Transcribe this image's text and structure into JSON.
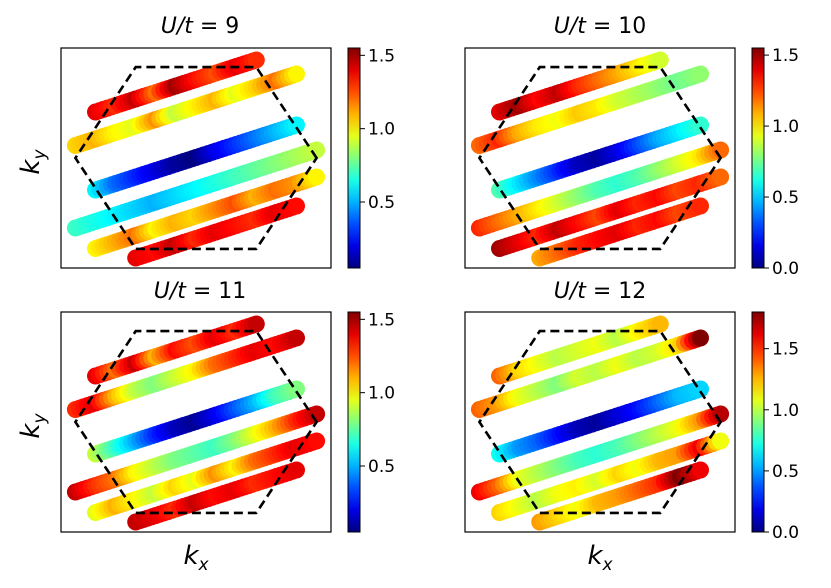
{
  "figure": {
    "xlabel": "k_x",
    "ylabel": "k_y"
  },
  "chart_data": [
    {
      "type": "scatter",
      "title": "U/t = 9",
      "title_parts": {
        "var": "U",
        "slash": "/",
        "den": "t",
        "eq": " = ",
        "val": "9"
      },
      "xlabel": "",
      "ylabel": "k_y",
      "colorbar": {
        "min": 0.05,
        "max": 1.55,
        "ticks": [
          0.5,
          1.0,
          1.5
        ],
        "tick_labels": [
          "0.5",
          "1.0",
          "1.5"
        ],
        "colormap": "jet"
      },
      "brillouin_zone": "hexagon, black dashed",
      "grid": false,
      "series": [
        {
          "x": [
            -1.75,
            -1.4,
            -1.05,
            -0.7,
            -0.35,
            0.0,
            0.35,
            0.7,
            1.05
          ],
          "y": [
            0.92,
            1.05,
            1.18,
            1.31,
            1.44,
            1.57,
            1.7,
            1.83,
            1.96
          ],
          "c": [
            1.4,
            1.3,
            1.45,
            1.2,
            1.5,
            1.35,
            1.25,
            1.4,
            1.3
          ]
        },
        {
          "x": [
            -2.1,
            -1.75,
            -1.4,
            -1.05,
            -0.7,
            -0.35,
            0.0,
            0.35,
            0.7,
            1.05,
            1.4,
            1.75
          ],
          "y": [
            0.25,
            0.38,
            0.51,
            0.64,
            0.77,
            0.9,
            1.03,
            1.16,
            1.29,
            1.42,
            1.55,
            1.68
          ],
          "c": [
            1.05,
            1.1,
            1.0,
            0.95,
            1.15,
            0.9,
            1.0,
            1.1,
            0.95,
            1.05,
            1.2,
            1.0
          ]
        },
        {
          "x": [
            -1.75,
            -1.4,
            -1.05,
            -0.7,
            -0.35,
            0.0,
            0.35,
            0.7,
            1.05,
            1.4,
            1.75
          ],
          "y": [
            -0.64,
            -0.51,
            -0.38,
            -0.25,
            -0.12,
            0.01,
            0.14,
            0.27,
            0.4,
            0.53,
            0.66
          ],
          "c": [
            0.6,
            0.4,
            0.3,
            0.2,
            0.1,
            0.05,
            0.2,
            0.3,
            0.4,
            0.5,
            0.6
          ]
        },
        {
          "x": [
            -2.1,
            -1.75,
            -1.4,
            -1.05,
            -0.7,
            -0.35,
            0.0,
            0.35,
            0.7,
            1.05,
            1.4,
            1.75,
            2.1
          ],
          "y": [
            -1.4,
            -1.27,
            -1.14,
            -1.01,
            -0.88,
            -0.75,
            -0.62,
            -0.49,
            -0.36,
            -0.23,
            -0.1,
            0.03,
            0.16
          ],
          "c": [
            0.7,
            0.65,
            0.6,
            0.55,
            0.5,
            0.55,
            0.6,
            0.65,
            0.7,
            0.75,
            0.8,
            0.85,
            0.9
          ]
        },
        {
          "x": [
            -1.75,
            -1.4,
            -1.05,
            -0.7,
            -0.35,
            0.0,
            0.35,
            0.7,
            1.05,
            1.4,
            1.75,
            2.1
          ],
          "y": [
            -1.81,
            -1.68,
            -1.55,
            -1.42,
            -1.29,
            -1.16,
            -1.03,
            -0.9,
            -0.77,
            -0.64,
            -0.51,
            -0.38
          ],
          "c": [
            1.0,
            1.1,
            1.2,
            1.0,
            1.1,
            1.05,
            1.15,
            1.25,
            1.1,
            1.2,
            1.15,
            1.0
          ]
        },
        {
          "x": [
            -1.05,
            -0.7,
            -0.35,
            0.0,
            0.35,
            0.7,
            1.05,
            1.4,
            1.75
          ],
          "y": [
            -2.0,
            -1.87,
            -1.74,
            -1.61,
            -1.48,
            -1.35,
            -1.22,
            -1.09,
            -0.96
          ],
          "c": [
            1.4,
            1.35,
            1.45,
            1.3,
            1.4,
            1.35,
            1.3,
            1.4,
            1.35
          ]
        }
      ]
    },
    {
      "type": "scatter",
      "title": "U/t = 10",
      "title_parts": {
        "var": "U",
        "slash": "/",
        "den": "t",
        "eq": " = ",
        "val": "10"
      },
      "xlabel": "",
      "ylabel": "",
      "colorbar": {
        "min": 0.0,
        "max": 1.55,
        "ticks": [
          0.0,
          0.5,
          1.0,
          1.5
        ],
        "tick_labels": [
          "0.0",
          "0.5",
          "1.0",
          "1.5"
        ],
        "colormap": "jet"
      },
      "brillouin_zone": "hexagon, black dashed",
      "grid": false,
      "series": [
        {
          "x": [
            -1.75,
            -1.4,
            -1.05,
            -0.7,
            -0.35,
            0.0,
            0.35,
            0.7,
            1.05
          ],
          "y": [
            0.92,
            1.05,
            1.18,
            1.31,
            1.44,
            1.57,
            1.7,
            1.83,
            1.96
          ],
          "c": [
            1.4,
            1.5,
            1.35,
            1.45,
            1.3,
            1.2,
            1.1,
            1.0,
            0.9
          ]
        },
        {
          "x": [
            -2.1,
            -1.75,
            -1.4,
            -1.05,
            -0.7,
            -0.35,
            0.0,
            0.35,
            0.7,
            1.05,
            1.4,
            1.75
          ],
          "y": [
            0.25,
            0.38,
            0.51,
            0.64,
            0.77,
            0.9,
            1.03,
            1.16,
            1.29,
            1.42,
            1.55,
            1.68
          ],
          "c": [
            1.2,
            1.3,
            1.1,
            1.0,
            0.95,
            1.05,
            1.0,
            0.9,
            0.85,
            0.8,
            0.75,
            0.8
          ]
        },
        {
          "x": [
            -1.75,
            -1.4,
            -1.05,
            -0.7,
            -0.35,
            0.0,
            0.35,
            0.7,
            1.05,
            1.4,
            1.75
          ],
          "y": [
            -0.64,
            -0.51,
            -0.38,
            -0.25,
            -0.12,
            0.01,
            0.14,
            0.27,
            0.4,
            0.53,
            0.66
          ],
          "c": [
            0.7,
            0.55,
            0.4,
            0.25,
            0.1,
            0.05,
            0.15,
            0.3,
            0.45,
            0.55,
            0.65
          ]
        },
        {
          "x": [
            -2.1,
            -1.75,
            -1.4,
            -1.05,
            -0.7,
            -0.35,
            0.0,
            0.35,
            0.7,
            1.05,
            1.4,
            1.75,
            2.1
          ],
          "y": [
            -1.4,
            -1.27,
            -1.14,
            -1.01,
            -0.88,
            -0.75,
            -0.62,
            -0.49,
            -0.36,
            -0.23,
            -0.1,
            0.03,
            0.16
          ],
          "c": [
            1.3,
            1.2,
            1.1,
            1.0,
            0.9,
            0.8,
            0.7,
            0.65,
            0.7,
            0.8,
            0.9,
            1.0,
            1.2
          ]
        },
        {
          "x": [
            -1.75,
            -1.4,
            -1.05,
            -0.7,
            -0.35,
            0.0,
            0.35,
            0.7,
            1.05,
            1.4,
            1.75,
            2.1
          ],
          "y": [
            -1.81,
            -1.68,
            -1.55,
            -1.42,
            -1.29,
            -1.16,
            -1.03,
            -0.9,
            -0.77,
            -0.64,
            -0.51,
            -0.38
          ],
          "c": [
            1.5,
            1.4,
            1.3,
            1.45,
            1.35,
            1.25,
            1.4,
            1.3,
            1.35,
            1.25,
            1.3,
            1.2
          ]
        },
        {
          "x": [
            -1.05,
            -0.7,
            -0.35,
            0.0,
            0.35,
            0.7,
            1.05,
            1.4,
            1.75
          ],
          "y": [
            -2.0,
            -1.87,
            -1.74,
            -1.61,
            -1.48,
            -1.35,
            -1.22,
            -1.09,
            -0.96
          ],
          "c": [
            1.1,
            1.2,
            1.3,
            1.35,
            1.4,
            1.3,
            1.35,
            1.25,
            1.3
          ]
        }
      ]
    },
    {
      "type": "scatter",
      "title": "U/t = 11",
      "title_parts": {
        "var": "U",
        "slash": "/",
        "den": "t",
        "eq": " = ",
        "val": "11"
      },
      "xlabel": "k_x",
      "ylabel": "k_y",
      "colorbar": {
        "min": 0.05,
        "max": 1.55,
        "ticks": [
          0.5,
          1.0,
          1.5
        ],
        "tick_labels": [
          "0.5",
          "1.0",
          "1.5"
        ],
        "colormap": "jet"
      },
      "brillouin_zone": "hexagon, black dashed",
      "grid": false,
      "series": [
        {
          "x": [
            -1.75,
            -1.4,
            -1.05,
            -0.7,
            -0.35,
            0.0,
            0.35,
            0.7,
            1.05
          ],
          "y": [
            0.92,
            1.05,
            1.18,
            1.31,
            1.44,
            1.57,
            1.7,
            1.83,
            1.96
          ],
          "c": [
            1.4,
            1.2,
            1.45,
            1.1,
            1.35,
            1.25,
            1.4,
            1.3,
            1.45
          ]
        },
        {
          "x": [
            -2.1,
            -1.75,
            -1.4,
            -1.05,
            -0.7,
            -0.35,
            0.0,
            0.35,
            0.7,
            1.05,
            1.4,
            1.75
          ],
          "y": [
            0.25,
            0.38,
            0.51,
            0.64,
            0.77,
            0.9,
            1.03,
            1.16,
            1.29,
            1.42,
            1.55,
            1.68
          ],
          "c": [
            1.3,
            1.4,
            1.1,
            0.9,
            0.8,
            0.9,
            1.0,
            1.2,
            1.3,
            1.4,
            1.35,
            1.45
          ]
        },
        {
          "x": [
            -1.75,
            -1.4,
            -1.05,
            -0.7,
            -0.35,
            0.0,
            0.35,
            0.7,
            1.05,
            1.4,
            1.75
          ],
          "y": [
            -0.64,
            -0.51,
            -0.38,
            -0.25,
            -0.12,
            0.01,
            0.14,
            0.27,
            0.4,
            0.53,
            0.66
          ],
          "c": [
            0.9,
            0.7,
            0.5,
            0.3,
            0.15,
            0.08,
            0.2,
            0.35,
            0.5,
            0.7,
            0.8
          ]
        },
        {
          "x": [
            -2.1,
            -1.75,
            -1.4,
            -1.05,
            -0.7,
            -0.35,
            0.0,
            0.35,
            0.7,
            1.05,
            1.4,
            1.75,
            2.1
          ],
          "y": [
            -1.4,
            -1.27,
            -1.14,
            -1.01,
            -0.88,
            -0.75,
            -0.62,
            -0.49,
            -0.36,
            -0.23,
            -0.1,
            0.03,
            0.16
          ],
          "c": [
            1.45,
            1.3,
            1.2,
            1.0,
            0.9,
            0.8,
            0.75,
            0.7,
            0.8,
            0.95,
            1.1,
            1.3,
            1.45
          ]
        },
        {
          "x": [
            -1.75,
            -1.4,
            -1.05,
            -0.7,
            -0.35,
            0.0,
            0.35,
            0.7,
            1.05,
            1.4,
            1.75,
            2.1
          ],
          "y": [
            -1.81,
            -1.68,
            -1.55,
            -1.42,
            -1.29,
            -1.16,
            -1.03,
            -0.9,
            -0.77,
            -0.64,
            -0.51,
            -0.38
          ],
          "c": [
            0.95,
            1.1,
            1.0,
            0.9,
            1.05,
            0.95,
            1.15,
            1.0,
            1.2,
            1.3,
            1.4,
            1.35
          ]
        },
        {
          "x": [
            -1.05,
            -0.7,
            -0.35,
            0.0,
            0.35,
            0.7,
            1.05,
            1.4,
            1.75
          ],
          "y": [
            -2.0,
            -1.87,
            -1.74,
            -1.61,
            -1.48,
            -1.35,
            -1.22,
            -1.09,
            -0.96
          ],
          "c": [
            1.45,
            1.4,
            1.3,
            1.45,
            1.35,
            1.4,
            1.3,
            1.35,
            1.4
          ]
        }
      ]
    },
    {
      "type": "scatter",
      "title": "U/t = 12",
      "title_parts": {
        "var": "U",
        "slash": "/",
        "den": "t",
        "eq": " = ",
        "val": "12"
      },
      "xlabel": "k_x",
      "ylabel": "",
      "colorbar": {
        "min": 0.0,
        "max": 1.8,
        "ticks": [
          0.0,
          0.5,
          1.0,
          1.5
        ],
        "tick_labels": [
          "0.0",
          "0.5",
          "1.0",
          "1.5"
        ],
        "colormap": "jet"
      },
      "brillouin_zone": "hexagon, black dashed",
      "grid": false,
      "series": [
        {
          "x": [
            -1.75,
            -1.4,
            -1.05,
            -0.7,
            -0.35,
            0.0,
            0.35,
            0.7,
            1.05
          ],
          "y": [
            0.92,
            1.05,
            1.18,
            1.31,
            1.44,
            1.57,
            1.7,
            1.83,
            1.96
          ],
          "c": [
            1.4,
            1.2,
            1.1,
            1.0,
            1.05,
            1.1,
            1.0,
            1.15,
            1.25
          ]
        },
        {
          "x": [
            -2.1,
            -1.75,
            -1.4,
            -1.05,
            -0.7,
            -0.35,
            0.0,
            0.35,
            0.7,
            1.05,
            1.4,
            1.75
          ],
          "y": [
            0.25,
            0.38,
            0.51,
            0.64,
            0.77,
            0.9,
            1.03,
            1.16,
            1.29,
            1.42,
            1.55,
            1.68
          ],
          "c": [
            1.4,
            1.3,
            1.1,
            1.0,
            0.9,
            1.05,
            1.0,
            1.1,
            1.0,
            1.05,
            1.2,
            1.8
          ]
        },
        {
          "x": [
            -1.75,
            -1.4,
            -1.05,
            -0.7,
            -0.35,
            0.0,
            0.35,
            0.7,
            1.05,
            1.4,
            1.75
          ],
          "y": [
            -0.64,
            -0.51,
            -0.38,
            -0.25,
            -0.12,
            0.01,
            0.14,
            0.27,
            0.4,
            0.53,
            0.66
          ],
          "c": [
            0.7,
            0.5,
            0.4,
            0.25,
            0.1,
            0.05,
            0.15,
            0.25,
            0.4,
            0.55,
            0.6
          ]
        },
        {
          "x": [
            -2.1,
            -1.75,
            -1.4,
            -1.05,
            -0.7,
            -0.35,
            0.0,
            0.35,
            0.7,
            1.05,
            1.4,
            1.75,
            2.1
          ],
          "y": [
            -1.4,
            -1.27,
            -1.14,
            -1.01,
            -0.88,
            -0.75,
            -0.62,
            -0.49,
            -0.36,
            -0.23,
            -0.1,
            0.03,
            0.16
          ],
          "c": [
            1.6,
            1.4,
            1.1,
            1.0,
            0.9,
            0.8,
            0.75,
            0.8,
            0.9,
            1.0,
            1.1,
            1.3,
            1.7
          ]
        },
        {
          "x": [
            -1.75,
            -1.4,
            -1.05,
            -0.7,
            -0.35,
            0.0,
            0.35,
            0.7,
            1.05,
            1.4,
            1.75,
            2.1
          ],
          "y": [
            -1.81,
            -1.68,
            -1.55,
            -1.42,
            -1.29,
            -1.16,
            -1.03,
            -0.9,
            -0.77,
            -0.64,
            -0.51,
            -0.38
          ],
          "c": [
            1.2,
            1.1,
            1.0,
            1.1,
            1.15,
            1.05,
            1.2,
            1.1,
            1.25,
            1.3,
            1.6,
            1.1
          ]
        },
        {
          "x": [
            -1.05,
            -0.7,
            -0.35,
            0.0,
            0.35,
            0.7,
            1.05,
            1.4,
            1.75
          ],
          "y": [
            -2.0,
            -1.87,
            -1.74,
            -1.61,
            -1.48,
            -1.35,
            -1.22,
            -1.09,
            -0.96
          ],
          "c": [
            1.3,
            1.2,
            1.1,
            1.25,
            1.3,
            1.4,
            1.5,
            1.8,
            1.6
          ]
        }
      ]
    }
  ]
}
